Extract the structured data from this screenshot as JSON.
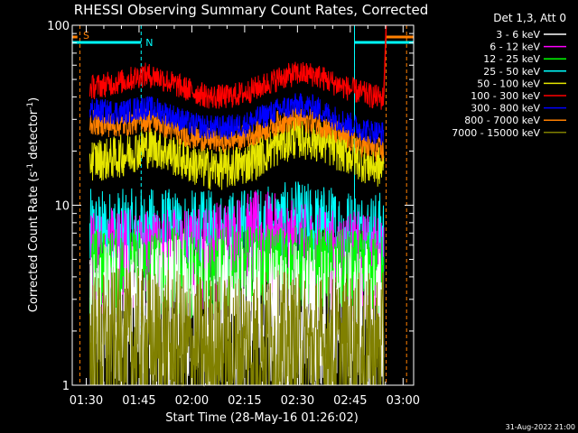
{
  "chart_data": {
    "type": "line",
    "title": "RHESSI Observing Summary Count Rates, Corrected",
    "xlabel": "Start Time (28-May-16 01:26:02)",
    "ylabel_main": "Corrected Count Rate (s",
    "ylabel_sup1": "-1",
    "ylabel_mid": " detector",
    "ylabel_sup2": "-1",
    "ylabel_end": ")",
    "x_range_min": [
      86.03,
      183
    ],
    "y_range": [
      1,
      100
    ],
    "y_scale": "log",
    "x_ticks": [
      {
        "min": 90,
        "label": "01:30"
      },
      {
        "min": 105,
        "label": "01:45"
      },
      {
        "min": 120,
        "label": "02:00"
      },
      {
        "min": 135,
        "label": "02:15"
      },
      {
        "min": 150,
        "label": "02:30"
      },
      {
        "min": 165,
        "label": "02:45"
      },
      {
        "min": 180,
        "label": "03:00"
      }
    ],
    "y_ticks": [
      {
        "value": 1,
        "label": "1"
      },
      {
        "value": 10,
        "label": "10"
      },
      {
        "value": 100,
        "label": "100"
      }
    ],
    "legend": {
      "header": "Det 1,3, Att 0",
      "placement": "right",
      "entries": [
        {
          "label": "3 - 6 keV",
          "color": "#ffffff"
        },
        {
          "label": "6 - 12 keV",
          "color": "#ff00ff"
        },
        {
          "label": "12 - 25 keV",
          "color": "#00ff00"
        },
        {
          "label": "25 - 50 keV",
          "color": "#00ffff"
        },
        {
          "label": "50 - 100 keV",
          "color": "#e6e600"
        },
        {
          "label": "100 - 300 keV",
          "color": "#ff0000"
        },
        {
          "label": "300 - 800 keV",
          "color": "#0000ff"
        },
        {
          "label": "800 - 7000 keV",
          "color": "#ff8000"
        },
        {
          "label": "7000 - 15000 keV",
          "color": "#808000"
        }
      ]
    },
    "markers": {
      "saa_label": "S",
      "night_label": "N",
      "saa_color": "#ff8000",
      "night_color": "#00ffff",
      "saa_lines_min": [
        88.2,
        175.2,
        181.0
      ],
      "night_lines_min": [
        105.6,
        166.2
      ],
      "night_solid_min": [
        86.03,
        166.2
      ],
      "orange_box_min": [
        175.2,
        183
      ]
    },
    "series": [
      {
        "name": "100 - 300 keV",
        "color": "#ff0000",
        "start_min": 91,
        "end_min": 174.5,
        "points": [
          [
            91,
            45
          ],
          [
            96,
            47
          ],
          [
            101,
            49
          ],
          [
            106,
            53
          ],
          [
            110,
            52
          ],
          [
            115,
            47
          ],
          [
            120,
            43
          ],
          [
            125,
            40
          ],
          [
            130,
            40
          ],
          [
            135,
            42
          ],
          [
            140,
            46
          ],
          [
            145,
            51
          ],
          [
            150,
            54
          ],
          [
            155,
            53
          ],
          [
            160,
            48
          ],
          [
            165,
            44
          ],
          [
            170,
            41
          ],
          [
            174.5,
            39
          ]
        ]
      },
      {
        "name": "300 - 800 keV",
        "color": "#0000ff",
        "start_min": 91,
        "end_min": 174.5,
        "points": [
          [
            91,
            34
          ],
          [
            96,
            33
          ],
          [
            101,
            33
          ],
          [
            106,
            35
          ],
          [
            110,
            34
          ],
          [
            115,
            31
          ],
          [
            120,
            28
          ],
          [
            125,
            27
          ],
          [
            130,
            27
          ],
          [
            135,
            28
          ],
          [
            140,
            31
          ],
          [
            145,
            34
          ],
          [
            150,
            36
          ],
          [
            155,
            35
          ],
          [
            160,
            31
          ],
          [
            165,
            28
          ],
          [
            170,
            26
          ],
          [
            174.5,
            25
          ]
        ]
      },
      {
        "name": "800 - 7000 keV",
        "color": "#ff8000",
        "start_min": 91,
        "end_min": 174.5,
        "points": [
          [
            91,
            29
          ],
          [
            96,
            28
          ],
          [
            101,
            28
          ],
          [
            106,
            30
          ],
          [
            110,
            29
          ],
          [
            115,
            26
          ],
          [
            120,
            24
          ],
          [
            125,
            23
          ],
          [
            130,
            23
          ],
          [
            135,
            24
          ],
          [
            140,
            26
          ],
          [
            145,
            29
          ],
          [
            150,
            30
          ],
          [
            155,
            29
          ],
          [
            160,
            26
          ],
          [
            165,
            23
          ],
          [
            170,
            21
          ],
          [
            174.5,
            20
          ]
        ]
      },
      {
        "name": "50 - 100 keV",
        "color": "#e6e600",
        "start_min": 91,
        "end_min": 174.5,
        "points": [
          [
            91,
            18
          ],
          [
            96,
            18
          ],
          [
            101,
            19
          ],
          [
            106,
            21
          ],
          [
            110,
            21
          ],
          [
            115,
            19
          ],
          [
            120,
            17
          ],
          [
            125,
            16
          ],
          [
            130,
            16
          ],
          [
            135,
            17
          ],
          [
            140,
            19
          ],
          [
            145,
            22
          ],
          [
            150,
            24
          ],
          [
            155,
            23
          ],
          [
            160,
            21
          ],
          [
            165,
            19
          ],
          [
            170,
            17
          ],
          [
            174.5,
            16
          ]
        ]
      },
      {
        "name": "25 - 50 keV",
        "color": "#00ffff",
        "start_min": 91,
        "end_min": 174.5,
        "points": [
          [
            91,
            6.5
          ],
          [
            100,
            6.5
          ],
          [
            110,
            6.6
          ],
          [
            120,
            6.4
          ],
          [
            130,
            6.4
          ],
          [
            140,
            6.8
          ],
          [
            150,
            7.2
          ],
          [
            160,
            6.8
          ],
          [
            170,
            6.4
          ],
          [
            174.5,
            6.3
          ]
        ]
      },
      {
        "name": "6 - 12 keV",
        "color": "#ff00ff",
        "start_min": 91,
        "end_min": 174.5,
        "points": [
          [
            91,
            4.8
          ],
          [
            100,
            4.9
          ],
          [
            110,
            5.0
          ],
          [
            120,
            4.9
          ],
          [
            130,
            5.6
          ],
          [
            140,
            6.2
          ],
          [
            150,
            5.2
          ],
          [
            160,
            4.8
          ],
          [
            170,
            4.6
          ],
          [
            174.5,
            4.5
          ]
        ]
      },
      {
        "name": "12 - 25 keV",
        "color": "#00ff00",
        "start_min": 91,
        "end_min": 174.5,
        "points": [
          [
            91,
            4.2
          ],
          [
            100,
            4.2
          ],
          [
            110,
            4.3
          ],
          [
            120,
            4.2
          ],
          [
            130,
            4.3
          ],
          [
            140,
            4.4
          ],
          [
            150,
            4.4
          ],
          [
            160,
            4.2
          ],
          [
            170,
            4.1
          ],
          [
            174.5,
            4.0
          ]
        ]
      },
      {
        "name": "3 - 6 keV",
        "color": "#ffffff",
        "start_min": 91,
        "end_min": 174.5,
        "points": [
          [
            91,
            2.2
          ],
          [
            100,
            2.3
          ],
          [
            110,
            2.4
          ],
          [
            120,
            2.5
          ],
          [
            130,
            2.4
          ],
          [
            140,
            2.3
          ],
          [
            150,
            2.2
          ],
          [
            160,
            2.2
          ],
          [
            170,
            2.2
          ],
          [
            174.5,
            2.2
          ]
        ]
      },
      {
        "name": "7000 - 15000 keV",
        "color": "#808000",
        "start_min": 91,
        "end_min": 174.5,
        "points": [
          [
            91,
            1.5
          ],
          [
            100,
            1.6
          ],
          [
            110,
            1.6
          ],
          [
            120,
            1.5
          ],
          [
            130,
            1.5
          ],
          [
            140,
            1.6
          ],
          [
            150,
            1.5
          ],
          [
            160,
            1.5
          ],
          [
            170,
            1.5
          ],
          [
            174.5,
            1.5
          ]
        ]
      }
    ],
    "spike": {
      "color": "#ff0000",
      "points": [
        [
          174.5,
          40
        ],
        [
          175.2,
          100
        ]
      ]
    },
    "background_color": "#000000",
    "axis_color": "#ffffff"
  },
  "footer": {
    "date": "31-Aug-2022 21:00"
  }
}
